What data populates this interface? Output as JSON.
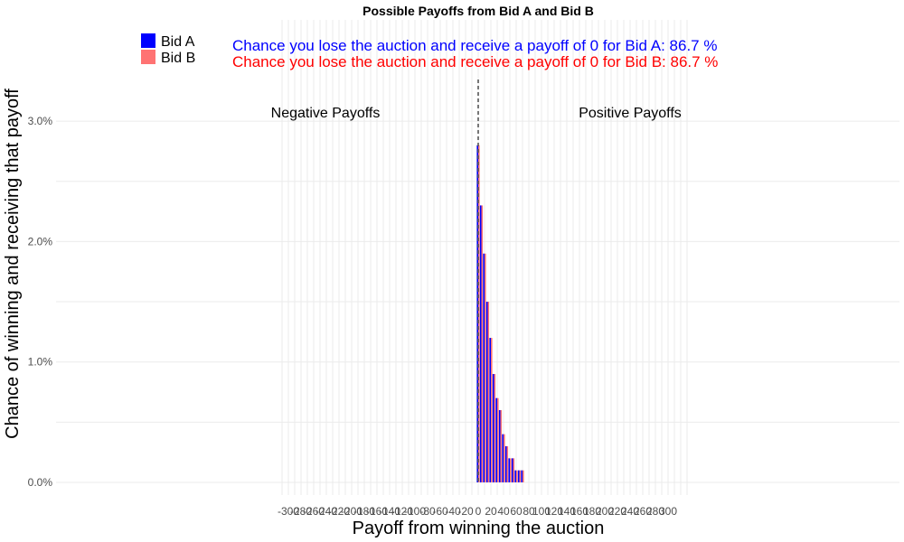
{
  "chart_data": {
    "type": "bar",
    "title": "Possible Payoffs from Bid A and Bid B",
    "xlabel": "Payoff from winning the auction",
    "ylabel": "Chance of winning and receiving that payoff",
    "xlim": [
      -310,
      330
    ],
    "ylim": [
      0,
      3.4
    ],
    "x_ticks": [
      -300,
      -280,
      -260,
      -240,
      -220,
      -200,
      -180,
      -160,
      -140,
      -120,
      -100,
      -80,
      -60,
      -40,
      -20,
      0,
      20,
      40,
      60,
      80,
      100,
      120,
      140,
      160,
      180,
      200,
      220,
      240,
      260,
      280,
      300
    ],
    "y_ticks": [
      0,
      1,
      2,
      3
    ],
    "y_tick_labels": [
      "0.0%",
      "1.0%",
      "2.0%",
      "3.0%"
    ],
    "grid": true,
    "legend_position": "top-left",
    "x": [
      0,
      5,
      10,
      15,
      20,
      25,
      30,
      35,
      40,
      45,
      50,
      55,
      60,
      65,
      70
    ],
    "series": [
      {
        "name": "Bid A",
        "color": "#0000ff",
        "values": [
          2.8,
          2.3,
          1.9,
          1.5,
          1.2,
          0.9,
          0.7,
          0.6,
          0.4,
          0.3,
          0.2,
          0.2,
          0.1,
          0.1,
          0.1
        ]
      },
      {
        "name": "Bid B",
        "color": "#ff7373",
        "values": [
          2.8,
          2.3,
          1.9,
          1.5,
          1.2,
          0.9,
          0.7,
          0.6,
          0.4,
          0.3,
          0.2,
          0.2,
          0.1,
          0.1,
          0.1
        ]
      }
    ],
    "annotations": {
      "lose_a": "Chance you lose the auction and receive a payoff of 0 for Bid A:  86.7 %",
      "lose_b": "Chance you lose the auction and receive a payoff of 0 for Bid B:  86.7 %",
      "negative_label": "Negative Payoffs",
      "positive_label": "Positive Payoffs"
    },
    "reference_line_x": 0
  }
}
